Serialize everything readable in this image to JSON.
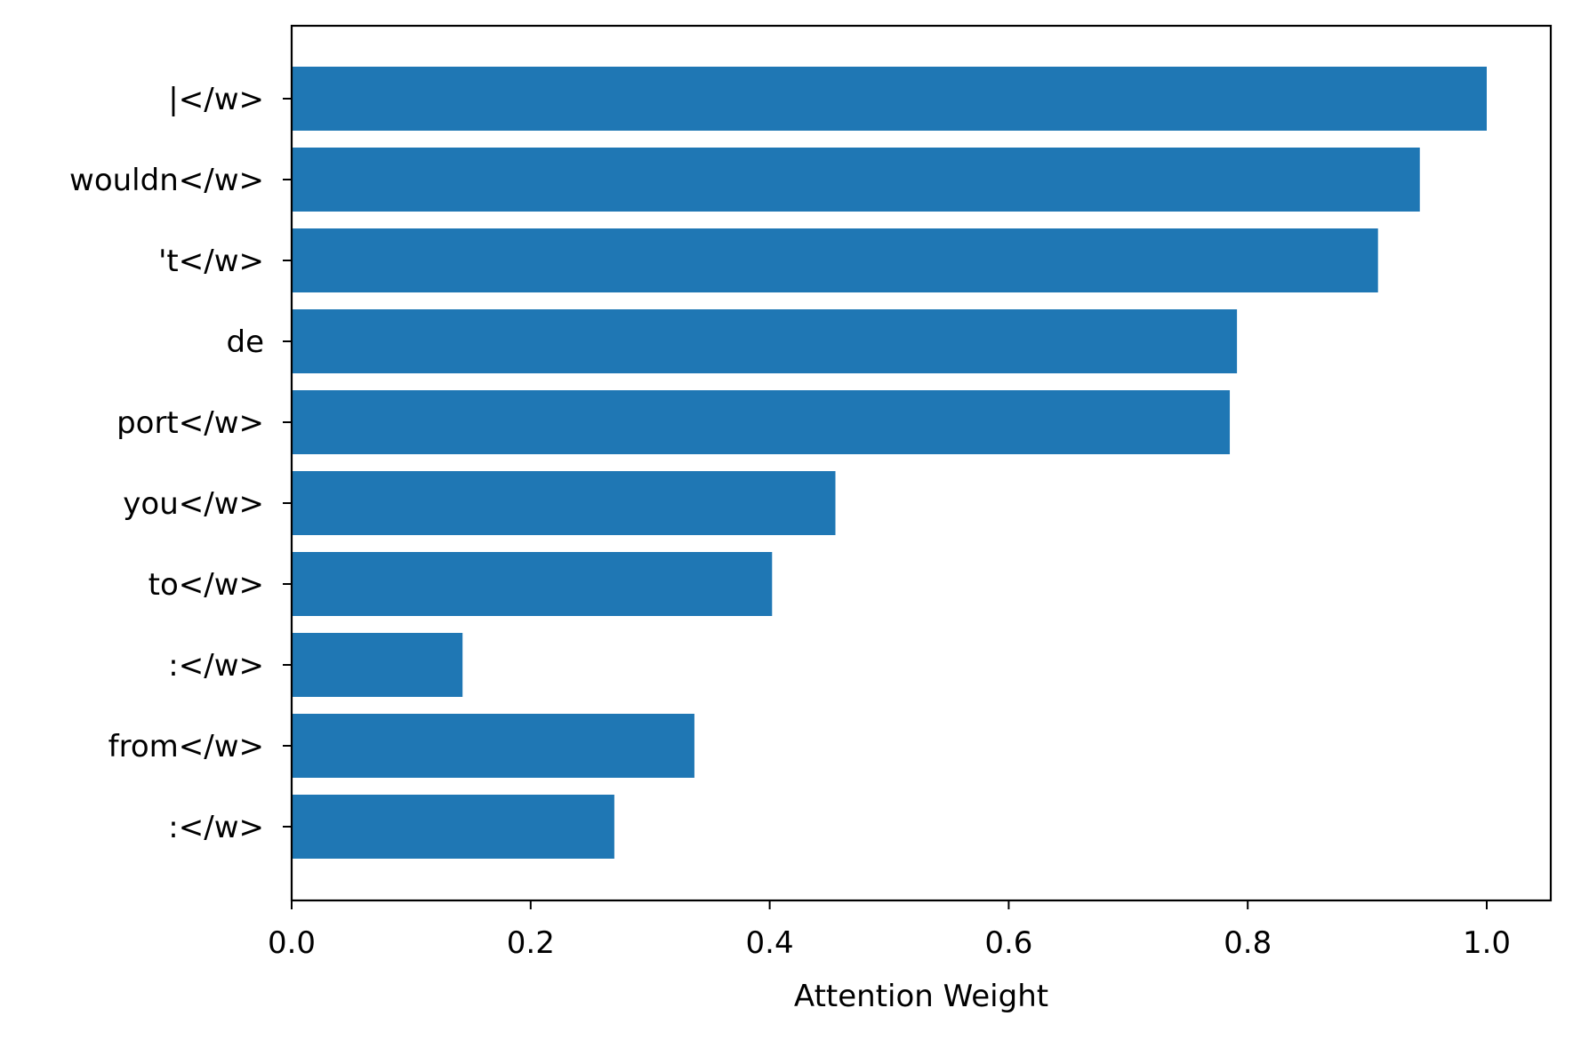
{
  "chart_data": {
    "type": "bar",
    "orientation": "horizontal",
    "title": "",
    "xlabel": "Attention Weight",
    "ylabel": "",
    "categories": [
      "|</w>",
      "wouldn</w>",
      "'t</w>",
      "de",
      "port</w>",
      "you</w>",
      "to</w>",
      ":</w>",
      "from</w>",
      ":</w>"
    ],
    "values": [
      1.0,
      0.944,
      0.909,
      0.791,
      0.785,
      0.455,
      0.402,
      0.143,
      0.337,
      0.27
    ],
    "xlim": [
      0,
      1.05
    ],
    "xticks": [
      "0.0",
      "0.2",
      "0.4",
      "0.6",
      "0.8",
      "1.0"
    ],
    "bar_color": "#1f77b4",
    "grid": false,
    "legend": "none"
  }
}
